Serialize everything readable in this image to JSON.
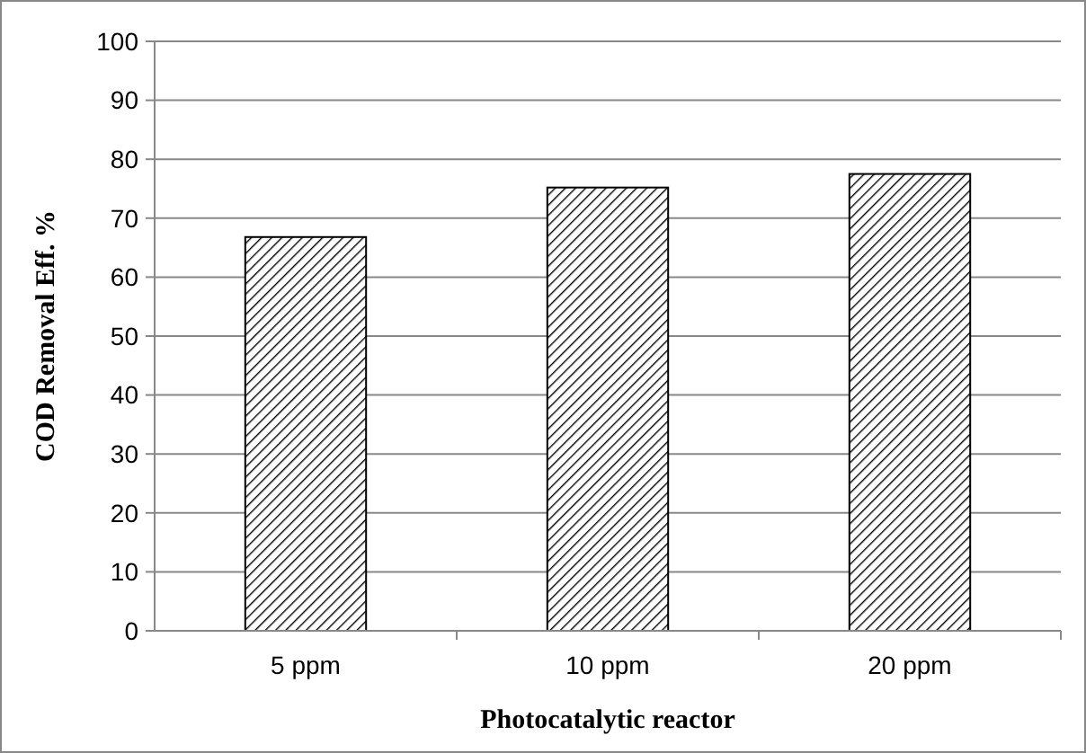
{
  "chart_data": {
    "type": "bar",
    "xlabel": "Photocatalytic  reactor",
    "ylabel": "COD Removal Eff. %",
    "categories": [
      "5 ppm",
      "10 ppm",
      "20 ppm"
    ],
    "values": [
      66.8,
      75.2,
      77.5
    ],
    "color": "#000000",
    "ylim": [
      0,
      100
    ],
    "yticks": [
      0,
      10,
      20,
      30,
      40,
      50,
      60,
      70,
      80,
      90,
      100
    ],
    "grid": "y"
  }
}
